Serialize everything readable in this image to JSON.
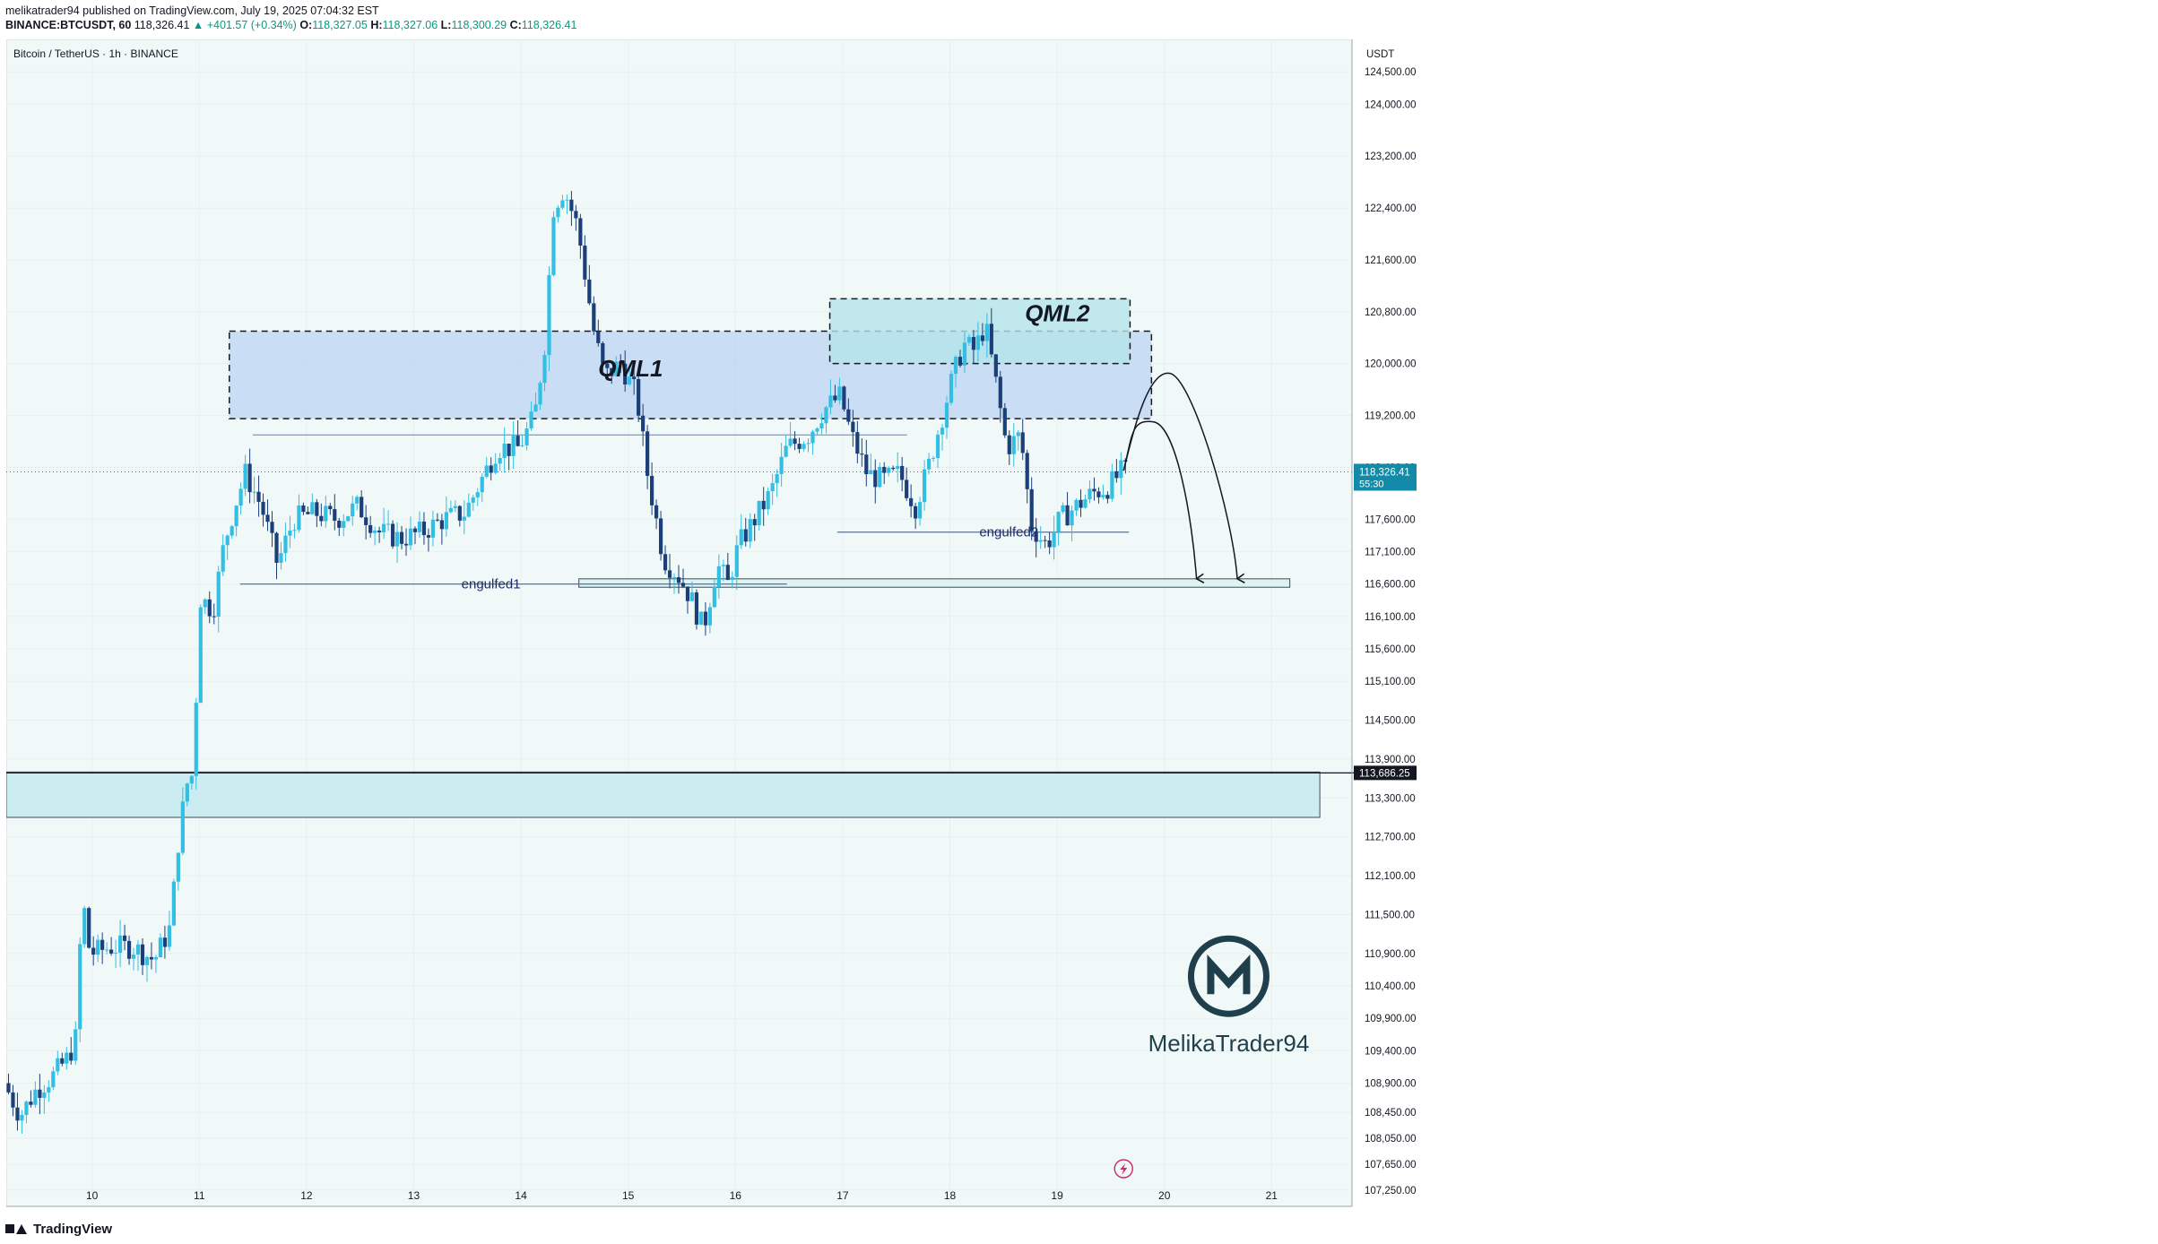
{
  "header": {
    "line1": "melikatrader94 published on TradingView.com, July 19, 2025 07:04:32 EST",
    "symbol": "BINANCE:BTCUSDT, 60",
    "last": "118,326.41",
    "change": "▲ +401.57 (+0.34%)",
    "ohlc_o_label": "O:",
    "ohlc_o": "118,327.05",
    "ohlc_h_label": "H:",
    "ohlc_h": "118,327.06",
    "ohlc_l_label": "L:",
    "ohlc_l": "118,300.29",
    "ohlc_c_label": "C:",
    "ohlc_c": "118,326.41"
  },
  "footer": {
    "brand": "TradingView"
  },
  "chart_data": {
    "type": "candlestick",
    "title": "Bitcoin / TetherUS · 1h · BINANCE",
    "currency": "USDT",
    "ylim": [
      107000,
      125000
    ],
    "y_ticks": [
      124500,
      124000,
      123200,
      122400,
      121600,
      120800,
      120000,
      119200,
      118400,
      117600,
      117100,
      116600,
      116100,
      115600,
      115100,
      114500,
      113900,
      113300,
      112700,
      112100,
      111500,
      110900,
      110400,
      109900,
      109400,
      108900,
      108450,
      108050,
      107650,
      107250
    ],
    "x_range_days": [
      9.2,
      21.75
    ],
    "x_ticks": [
      {
        "x": 10,
        "label": "10"
      },
      {
        "x": 11,
        "label": "11"
      },
      {
        "x": 12,
        "label": "12"
      },
      {
        "x": 13,
        "label": "13"
      },
      {
        "x": 14,
        "label": "14"
      },
      {
        "x": 15,
        "label": "15"
      },
      {
        "x": 16,
        "label": "16"
      },
      {
        "x": 17,
        "label": "17"
      },
      {
        "x": 18,
        "label": "18"
      },
      {
        "x": 19,
        "label": "19"
      },
      {
        "x": 20,
        "label": "20"
      },
      {
        "x": 21,
        "label": "21"
      }
    ],
    "price_path": [
      [
        9.2,
        108900
      ],
      [
        9.35,
        108400
      ],
      [
        9.5,
        108800
      ],
      [
        9.65,
        109000
      ],
      [
        9.8,
        109300
      ],
      [
        9.87,
        109600
      ],
      [
        9.93,
        111800
      ],
      [
        10.0,
        110900
      ],
      [
        10.2,
        111000
      ],
      [
        10.4,
        111000
      ],
      [
        10.6,
        110800
      ],
      [
        10.75,
        111300
      ],
      [
        10.83,
        112700
      ],
      [
        10.9,
        113500
      ],
      [
        10.97,
        113700
      ],
      [
        11.02,
        116400
      ],
      [
        11.15,
        116200
      ],
      [
        11.25,
        117200
      ],
      [
        11.35,
        117800
      ],
      [
        11.45,
        118300
      ],
      [
        11.6,
        117800
      ],
      [
        11.75,
        116900
      ],
      [
        11.9,
        117600
      ],
      [
        12.1,
        117700
      ],
      [
        12.3,
        117600
      ],
      [
        12.5,
        117800
      ],
      [
        12.7,
        117400
      ],
      [
        12.9,
        117300
      ],
      [
        13.1,
        117400
      ],
      [
        13.3,
        117600
      ],
      [
        13.5,
        117700
      ],
      [
        13.65,
        118200
      ],
      [
        13.8,
        118700
      ],
      [
        14.0,
        118700
      ],
      [
        14.15,
        119200
      ],
      [
        14.25,
        120400
      ],
      [
        14.32,
        122400
      ],
      [
        14.42,
        122700
      ],
      [
        14.55,
        122100
      ],
      [
        14.7,
        120500
      ],
      [
        14.8,
        119800
      ],
      [
        14.95,
        120000
      ],
      [
        15.1,
        119500
      ],
      [
        15.2,
        118300
      ],
      [
        15.35,
        117000
      ],
      [
        15.5,
        116700
      ],
      [
        15.6,
        116400
      ],
      [
        15.72,
        115900
      ],
      [
        15.85,
        116900
      ],
      [
        15.95,
        116600
      ],
      [
        16.05,
        117200
      ],
      [
        16.2,
        117600
      ],
      [
        16.35,
        118000
      ],
      [
        16.5,
        118700
      ],
      [
        16.7,
        118900
      ],
      [
        16.85,
        119300
      ],
      [
        17.0,
        119500
      ],
      [
        17.1,
        118900
      ],
      [
        17.25,
        118300
      ],
      [
        17.4,
        118200
      ],
      [
        17.55,
        118300
      ],
      [
        17.7,
        117800
      ],
      [
        17.82,
        118400
      ],
      [
        17.95,
        119200
      ],
      [
        18.05,
        119800
      ],
      [
        18.15,
        120300
      ],
      [
        18.25,
        120200
      ],
      [
        18.35,
        120600
      ],
      [
        18.45,
        119700
      ],
      [
        18.55,
        118700
      ],
      [
        18.68,
        118900
      ],
      [
        18.78,
        117500
      ],
      [
        18.92,
        117200
      ],
      [
        19.05,
        117600
      ],
      [
        19.2,
        117800
      ],
      [
        19.35,
        118000
      ],
      [
        19.5,
        118100
      ],
      [
        19.62,
        118330
      ]
    ],
    "current_price_label": "118,326.41",
    "countdown_label": "55:30",
    "level_label": "113,686.25",
    "level_price": 113686.25,
    "zones": [
      {
        "name": "QML1",
        "label": "QML1",
        "x0": 11.28,
        "x1": 19.88,
        "y0": 119150,
        "y1": 120500,
        "color": "#bcd3f4"
      },
      {
        "name": "QML2",
        "label": "QML2",
        "x0": 16.88,
        "x1": 19.68,
        "y0": 120000,
        "y1": 121000,
        "color": "#b4e3ea"
      },
      {
        "name": "demand",
        "label": "",
        "x0": 9.2,
        "x1": 21.45,
        "y0": 113000,
        "y1": 113700,
        "color": "#cbedf1"
      },
      {
        "name": "target",
        "label": "",
        "x0": 14.54,
        "x1": 21.17,
        "y0": 116550,
        "y1": 116680,
        "color": "#dff3f2"
      }
    ],
    "hlines": [
      {
        "name": "engulfed1",
        "label": "engulfed1",
        "x0": 11.38,
        "x1": 16.48,
        "y": 116600
      },
      {
        "name": "engulfed2",
        "label": "engulfed2",
        "x0": 16.95,
        "x1": 19.67,
        "y": 117400
      },
      {
        "name": "range-top",
        "label": "",
        "x0": 11.5,
        "x1": 17.6,
        "y": 118900
      }
    ],
    "projections": [
      {
        "name": "arrow-1",
        "from": [
          19.62,
          118350
        ],
        "peak": [
          19.9,
          119100
        ],
        "to": [
          20.3,
          116680
        ]
      },
      {
        "name": "arrow-2",
        "from": [
          19.62,
          118350
        ],
        "peak": [
          20.05,
          119850
        ],
        "to": [
          20.68,
          116680
        ]
      }
    ],
    "watermark": "MelikaTrader94"
  },
  "colors": {
    "up": "#33bfe3",
    "down": "#1c3f7a",
    "grid": "#e8f0ef",
    "background": "#f0f9f8",
    "axis_text": "#131722",
    "price_tag": "#138aa8"
  }
}
